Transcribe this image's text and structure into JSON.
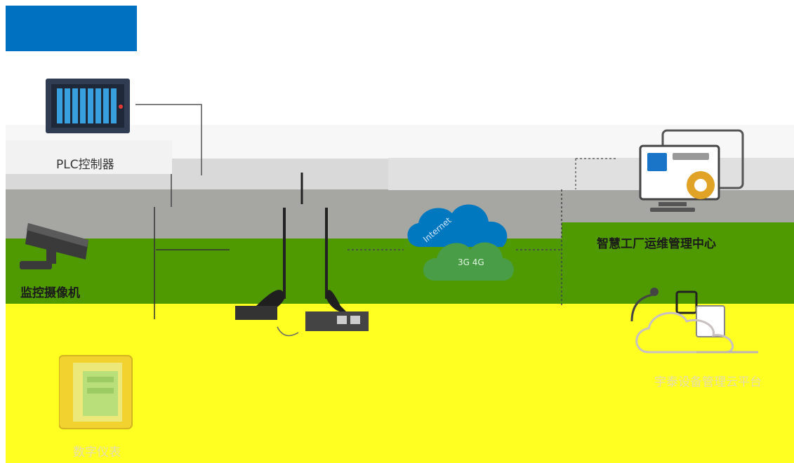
{
  "header": {
    "color": "#0070c0"
  },
  "bands": [
    {
      "name": "band-light-gray",
      "color": "#f7f7f7"
    },
    {
      "name": "band-gray",
      "color": "#d9d9d9"
    },
    {
      "name": "band-dark-gray",
      "color": "#a6a6a3"
    },
    {
      "name": "band-green",
      "color": "#4f9a00"
    },
    {
      "name": "band-yellow",
      "color": "#ffff22"
    }
  ],
  "nodes": {
    "plc": {
      "label": "PLC控制器",
      "icon": "plc-controller-icon"
    },
    "camera": {
      "label": "监控摄像机",
      "icon": "security-camera-icon"
    },
    "meter": {
      "label": "数字仪表",
      "icon": "digital-meter-icon"
    },
    "router": {
      "icon": "4g-router-icon"
    },
    "cloud": {
      "line1": "Internet",
      "line2": "3G 4G",
      "icon": "cloud-icon"
    },
    "ops_center": {
      "label": "智慧工厂运维管理中心",
      "icon": "monitor-computer-icon"
    },
    "cloud_platform": {
      "label": "宇泰设备管理云平台",
      "icon": "server-cloud-icon"
    }
  }
}
